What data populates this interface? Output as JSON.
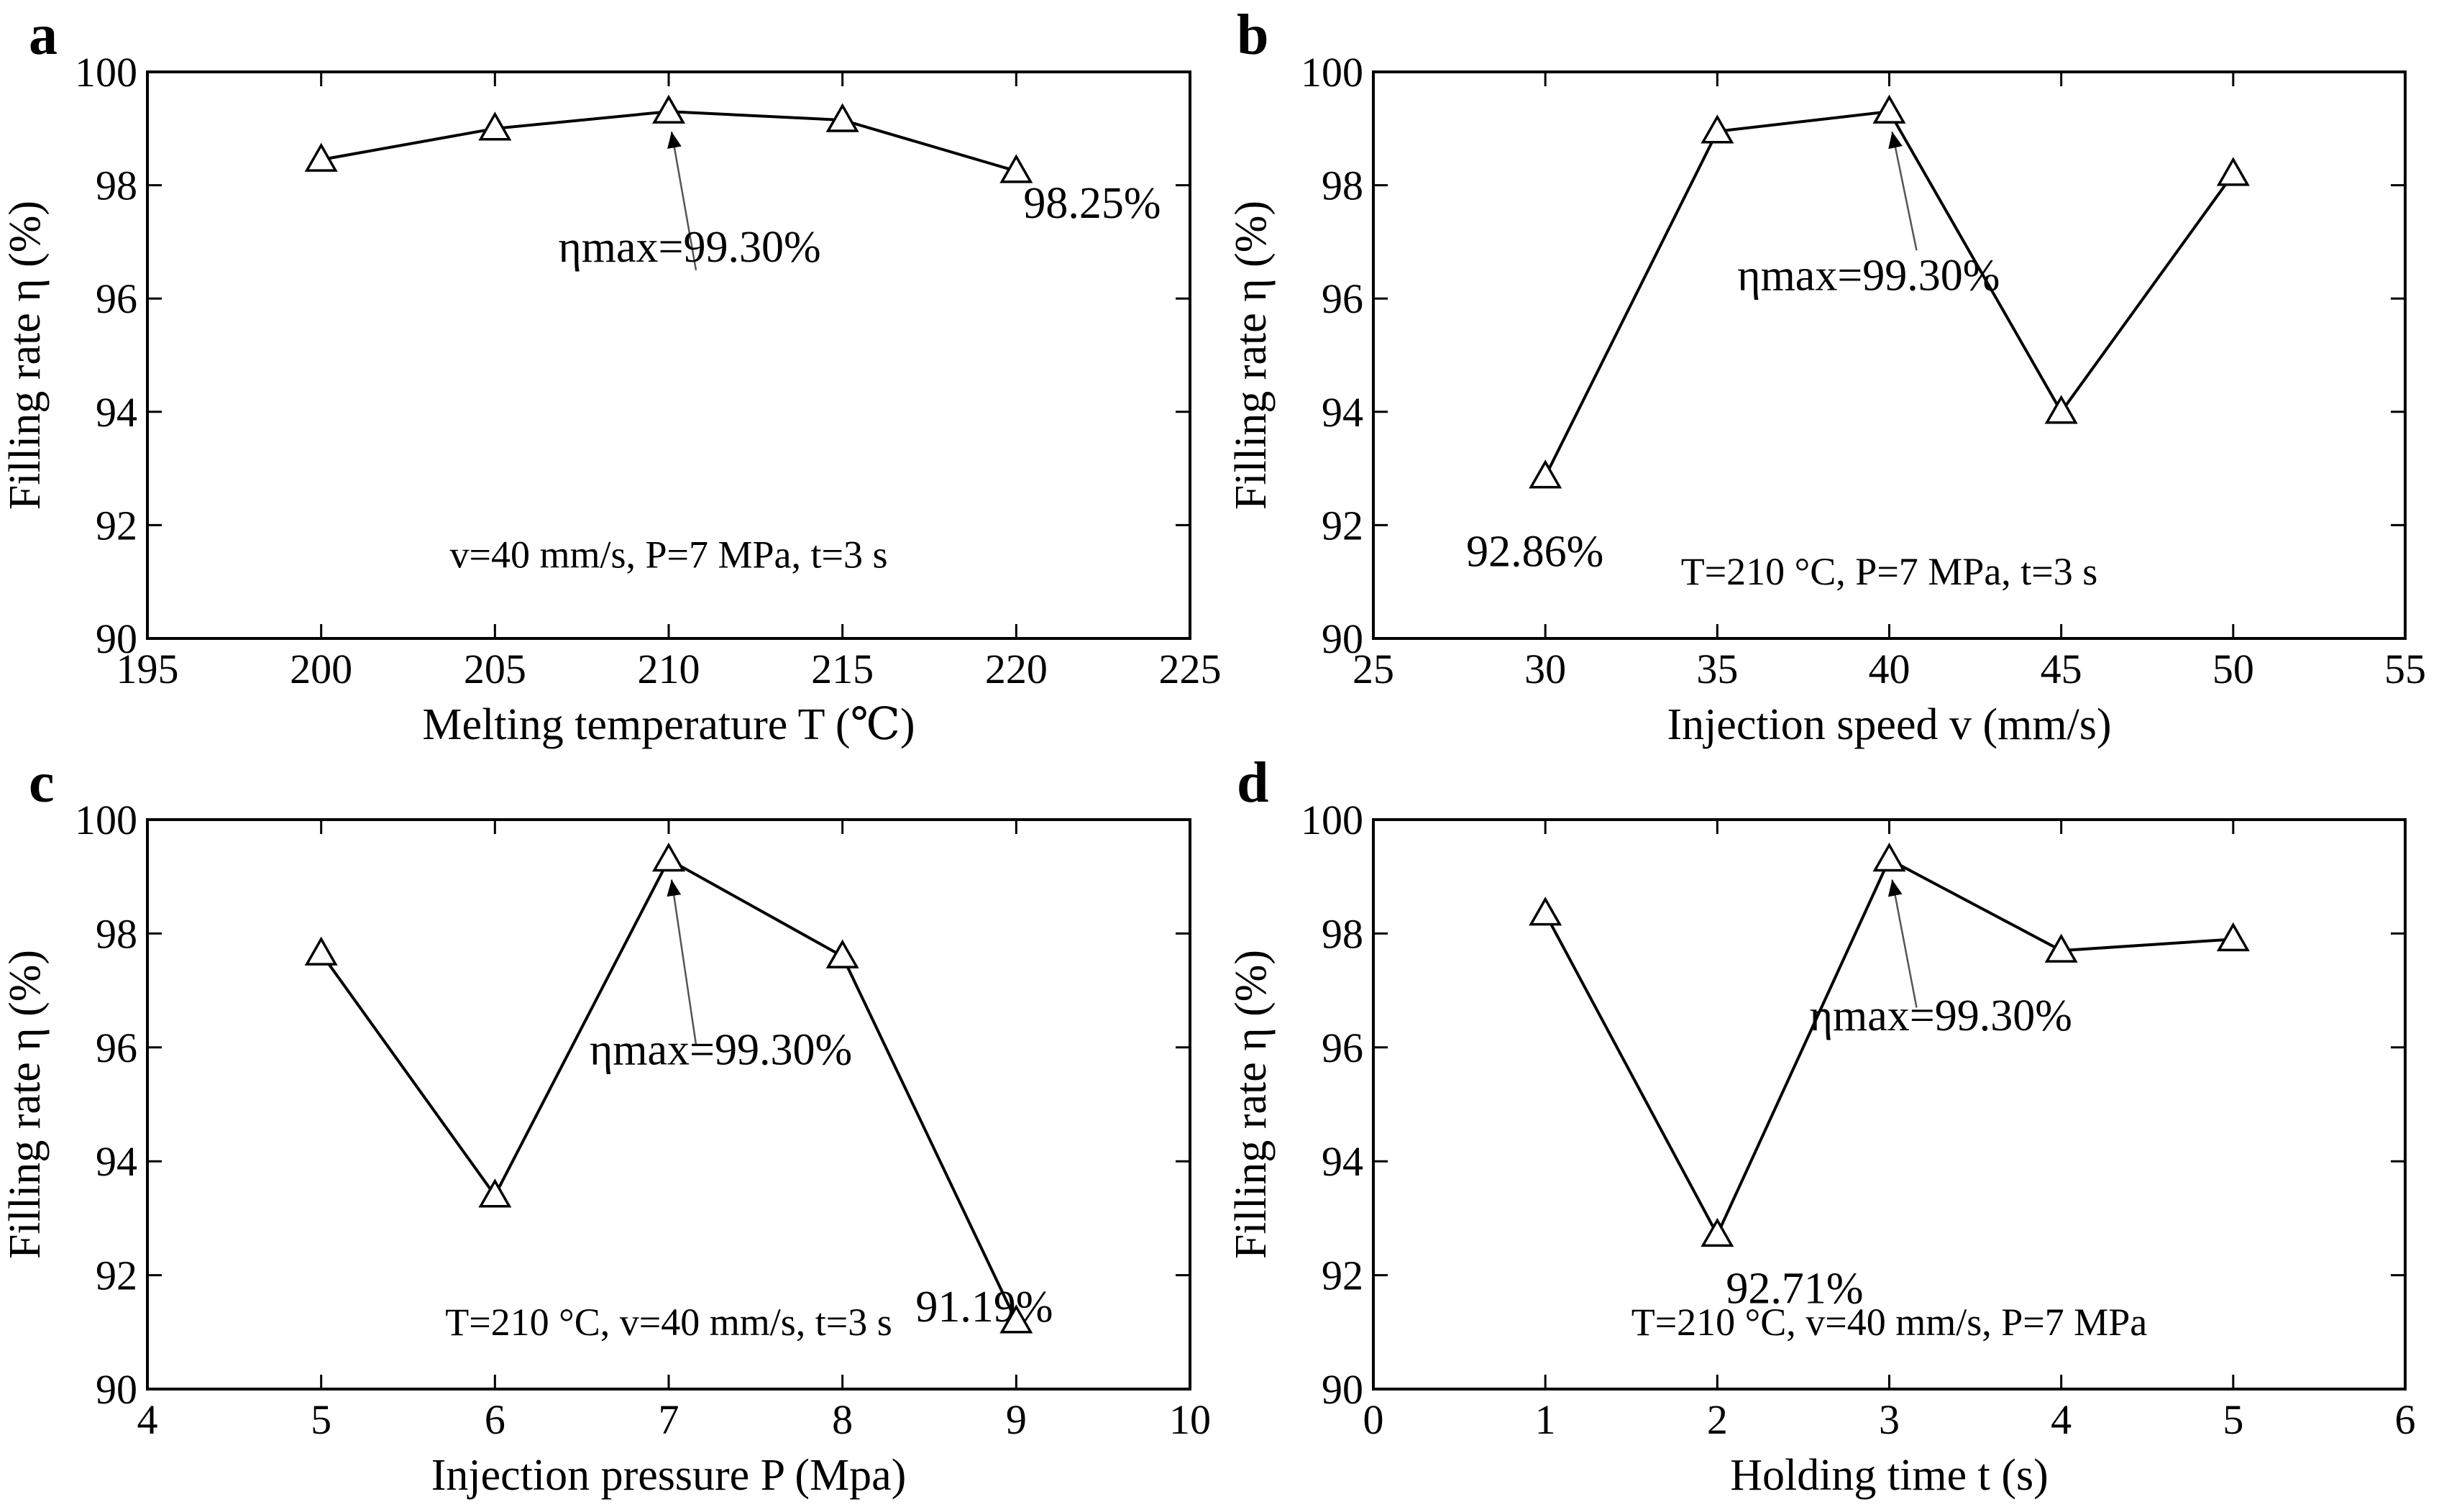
{
  "figure": {
    "panel_count": 4
  },
  "chart_data": [
    {
      "type": "line",
      "panel": "a",
      "x": [
        200,
        205,
        210,
        215,
        220
      ],
      "values": [
        98.45,
        99.0,
        99.3,
        99.15,
        98.25
      ],
      "xlim": [
        195,
        225
      ],
      "ylim": [
        90,
        100
      ],
      "xticks": [
        "195",
        "200",
        "205",
        "210",
        "215",
        "220",
        "225"
      ],
      "yticks": [
        "90",
        "92",
        "94",
        "96",
        "98",
        "100"
      ],
      "xlabel": "Melting temperature T (℃)",
      "ylabel": "Filling rate η (%)",
      "conditions": "v=40 mm/s, P=7 MPa, t=3 s",
      "max_annotation": "ηmax=99.30%",
      "max_point": {
        "x": 210,
        "y": 99.3
      },
      "point_labels": [
        {
          "text": "98.25%",
          "x": 220,
          "y": 98.25
        }
      ]
    },
    {
      "type": "line",
      "panel": "b",
      "x": [
        30,
        35,
        40,
        45,
        50
      ],
      "values": [
        92.86,
        98.95,
        99.3,
        94.0,
        98.2
      ],
      "xlim": [
        25,
        55
      ],
      "ylim": [
        90,
        100
      ],
      "xticks": [
        "25",
        "30",
        "35",
        "40",
        "45",
        "50",
        "55"
      ],
      "yticks": [
        "90",
        "92",
        "94",
        "96",
        "98",
        "100"
      ],
      "xlabel": "Injection speed v (mm/s)",
      "ylabel": "Filling rate η (%)",
      "conditions": "T=210 °C, P=7 MPa, t=3 s",
      "max_annotation": "ηmax=99.30%",
      "max_point": {
        "x": 40,
        "y": 99.3
      },
      "point_labels": [
        {
          "text": "92.86%",
          "x": 30,
          "y": 92.86
        }
      ]
    },
    {
      "type": "line",
      "panel": "c",
      "x": [
        5,
        6,
        7,
        8,
        9
      ],
      "values": [
        97.65,
        93.4,
        99.3,
        97.6,
        91.19
      ],
      "xlim": [
        4,
        10
      ],
      "ylim": [
        90,
        100
      ],
      "xticks": [
        "4",
        "5",
        "6",
        "7",
        "8",
        "9",
        "10"
      ],
      "yticks": [
        "90",
        "92",
        "94",
        "96",
        "98",
        "100"
      ],
      "xlabel": "Injection pressure P (Mpa)",
      "ylabel": "Filling rate η (%)",
      "conditions": "T=210 °C, v=40 mm/s, t=3 s",
      "max_annotation": "ηmax=99.30%",
      "max_point": {
        "x": 7,
        "y": 99.3
      },
      "point_labels": [
        {
          "text": "91.19%",
          "x": 9,
          "y": 91.19
        }
      ]
    },
    {
      "type": "line",
      "panel": "d",
      "x": [
        1,
        2,
        3,
        4,
        5
      ],
      "values": [
        98.35,
        92.71,
        99.3,
        97.7,
        97.9
      ],
      "xlim": [
        0,
        6
      ],
      "ylim": [
        90,
        100
      ],
      "xticks": [
        "0",
        "1",
        "2",
        "3",
        "4",
        "5",
        "6"
      ],
      "yticks": [
        "90",
        "92",
        "94",
        "96",
        "98",
        "100"
      ],
      "xlabel": "Holding time t (s)",
      "ylabel": "Filling rate η (%)",
      "conditions": "T=210 °C, v=40 mm/s, P=7 MPa",
      "max_annotation": "ηmax=99.30%",
      "max_point": {
        "x": 3,
        "y": 99.3
      },
      "point_labels": [
        {
          "text": "92.71%",
          "x": 2,
          "y": 92.71
        }
      ]
    }
  ]
}
